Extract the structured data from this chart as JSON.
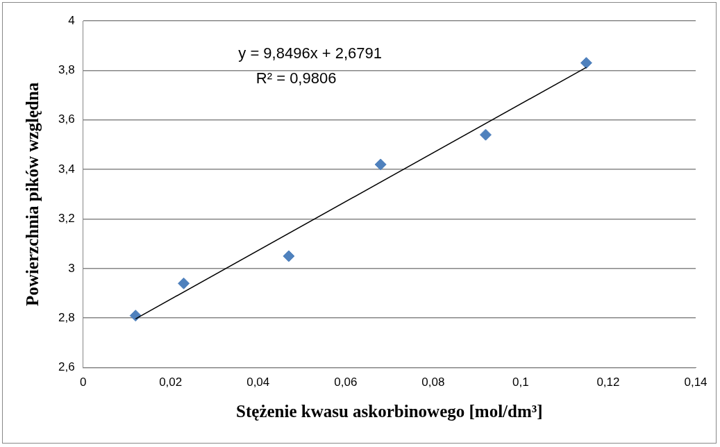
{
  "chart_data": {
    "type": "scatter",
    "xlabel": "Stężenie kwasu askorbinowego [mol/dm³]",
    "ylabel": "Powierzchnia pików względna",
    "x": [
      0.012,
      0.023,
      0.047,
      0.068,
      0.092,
      0.115
    ],
    "series": [
      {
        "color": "#4f81bd",
        "values": [
          2.81,
          2.94,
          3.05,
          3.42,
          3.54,
          3.83
        ]
      },
      {
        "type": "line",
        "marker": "none",
        "color": "#000000",
        "x": [
          0.012,
          0.115
        ],
        "values": [
          2.797,
          3.812
        ]
      }
    ],
    "xlim": [
      0,
      0.14
    ],
    "xticks": [
      0,
      {
        "value": 0.02,
        "label": "0,02"
      },
      {
        "value": 0.04,
        "label": "0,04"
      },
      {
        "value": 0.06,
        "label": "0,06"
      },
      {
        "value": 0.08,
        "label": "0,08"
      },
      {
        "value": 0.1,
        "label": "0,1"
      },
      {
        "value": 0.12,
        "label": "0,12"
      },
      {
        "value": 0.14,
        "label": "0,14"
      }
    ],
    "ylim": [
      2.6,
      4
    ],
    "yticks": [
      {
        "value": 2.6,
        "label": "2,6"
      },
      {
        "value": 2.8,
        "label": "2,8"
      },
      3,
      {
        "value": 3.2,
        "label": "3,2"
      },
      {
        "value": 3.4,
        "label": "3,4"
      },
      {
        "value": 3.6,
        "label": "3,6"
      },
      {
        "value": 3.8,
        "label": "3,8"
      },
      4
    ],
    "annotations": [
      "y = 9,8496x + 2,6791",
      "R² = 0,9806"
    ],
    "grid": "y",
    "legend": false,
    "marker": "diamond"
  }
}
